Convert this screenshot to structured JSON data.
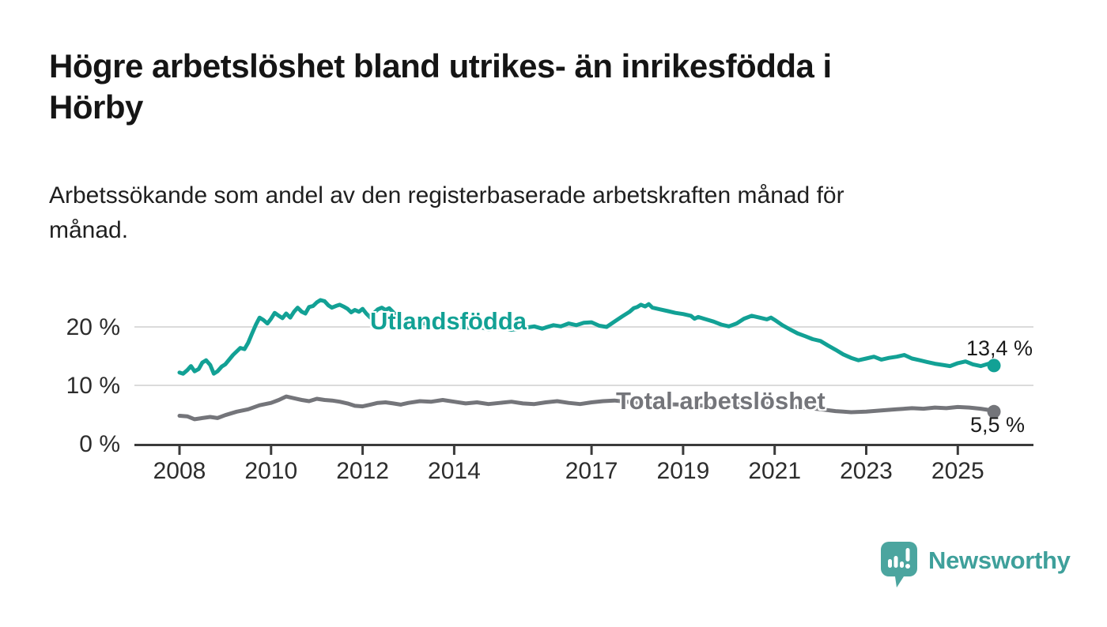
{
  "header": {
    "title": "Högre arbetslöshet bland utrikes- än inrikesfödda i\nHörby",
    "subtitle": "Arbetssökande som andel av den registerbaserade arbetskraften månad för\nmånad."
  },
  "colors": {
    "teal": "#12A195",
    "gray": "#74757A",
    "axis": "#3B3B3B",
    "grid": "#DBDBDB",
    "tick_text": "#2D2D2D",
    "logo_icon": "#4BA59F",
    "logo_text": "#3FA09B"
  },
  "chart_data": {
    "type": "line",
    "title": "Högre arbetslöshet bland utrikes- än inrikesfödda i Hörby",
    "subtitle": "Arbetssökande som andel av den registerbaserade arbetskraften månad för månad.",
    "unit": "%",
    "xlabel": "",
    "ylabel": "",
    "ylim": [
      0,
      26
    ],
    "x_range_years": [
      2008,
      2025.83
    ],
    "grid": "horizontal",
    "legend_position": "inline-labels",
    "y_ticks": [
      {
        "label": "0 %",
        "value": 0
      },
      {
        "label": "10 %",
        "value": 10
      },
      {
        "label": "20 %",
        "value": 20
      }
    ],
    "x_ticks": [
      {
        "label": "2008",
        "year": 2008
      },
      {
        "label": "2010",
        "year": 2010
      },
      {
        "label": "2012",
        "year": 2012
      },
      {
        "label": "2014",
        "year": 2014
      },
      {
        "label": "2017",
        "year": 2017
      },
      {
        "label": "2019",
        "year": 2019
      },
      {
        "label": "2021",
        "year": 2021
      },
      {
        "label": "2023",
        "year": 2023
      },
      {
        "label": "2025",
        "year": 2025
      }
    ],
    "series": [
      {
        "name": "Utlandsfödda",
        "color": "#12A195",
        "end_label": "13,4 %",
        "end_value": 13.4,
        "points": [
          [
            2008.0,
            12.2
          ],
          [
            2008.08,
            12.0
          ],
          [
            2008.17,
            12.6
          ],
          [
            2008.25,
            13.3
          ],
          [
            2008.33,
            12.4
          ],
          [
            2008.42,
            12.8
          ],
          [
            2008.5,
            13.9
          ],
          [
            2008.58,
            14.3
          ],
          [
            2008.67,
            13.5
          ],
          [
            2008.75,
            12.0
          ],
          [
            2008.83,
            12.4
          ],
          [
            2008.92,
            13.2
          ],
          [
            2009.0,
            13.6
          ],
          [
            2009.17,
            15.2
          ],
          [
            2009.33,
            16.4
          ],
          [
            2009.42,
            16.2
          ],
          [
            2009.5,
            17.3
          ],
          [
            2009.58,
            18.8
          ],
          [
            2009.67,
            20.4
          ],
          [
            2009.75,
            21.6
          ],
          [
            2009.83,
            21.2
          ],
          [
            2009.92,
            20.6
          ],
          [
            2010.0,
            21.4
          ],
          [
            2010.08,
            22.4
          ],
          [
            2010.17,
            21.9
          ],
          [
            2010.25,
            21.5
          ],
          [
            2010.33,
            22.3
          ],
          [
            2010.42,
            21.6
          ],
          [
            2010.5,
            22.6
          ],
          [
            2010.58,
            23.3
          ],
          [
            2010.67,
            22.6
          ],
          [
            2010.75,
            22.3
          ],
          [
            2010.83,
            23.4
          ],
          [
            2010.92,
            23.6
          ],
          [
            2011.0,
            24.2
          ],
          [
            2011.08,
            24.6
          ],
          [
            2011.17,
            24.4
          ],
          [
            2011.25,
            23.7
          ],
          [
            2011.33,
            23.3
          ],
          [
            2011.42,
            23.6
          ],
          [
            2011.5,
            23.8
          ],
          [
            2011.58,
            23.5
          ],
          [
            2011.67,
            23.1
          ],
          [
            2011.75,
            22.5
          ],
          [
            2011.83,
            22.9
          ],
          [
            2011.92,
            22.6
          ],
          [
            2012.0,
            23.1
          ],
          [
            2012.08,
            22.3
          ],
          [
            2012.17,
            21.6
          ],
          [
            2012.25,
            22.4
          ],
          [
            2012.33,
            23.0
          ],
          [
            2012.42,
            23.3
          ],
          [
            2012.5,
            22.9
          ],
          [
            2012.58,
            23.2
          ],
          [
            2012.67,
            22.5
          ],
          [
            2012.75,
            21.8
          ],
          [
            2012.83,
            21.4
          ],
          [
            2012.92,
            20.9
          ],
          [
            2013.0,
            20.4
          ],
          [
            2013.25,
            20.8
          ],
          [
            2013.5,
            20.3
          ],
          [
            2013.75,
            19.9
          ],
          [
            2014.0,
            20.2
          ],
          [
            2014.25,
            19.8
          ],
          [
            2014.5,
            20.1
          ],
          [
            2014.75,
            19.6
          ],
          [
            2015.0,
            20.0
          ],
          [
            2015.25,
            19.5
          ],
          [
            2015.5,
            19.8
          ],
          [
            2015.75,
            20.1
          ],
          [
            2015.92,
            19.7
          ],
          [
            2016.0,
            19.9
          ],
          [
            2016.17,
            20.3
          ],
          [
            2016.33,
            20.1
          ],
          [
            2016.5,
            20.6
          ],
          [
            2016.67,
            20.3
          ],
          [
            2016.83,
            20.7
          ],
          [
            2017.0,
            20.8
          ],
          [
            2017.17,
            20.2
          ],
          [
            2017.33,
            20.0
          ],
          [
            2017.5,
            20.9
          ],
          [
            2017.67,
            21.8
          ],
          [
            2017.83,
            22.6
          ],
          [
            2017.92,
            23.2
          ],
          [
            2018.0,
            23.4
          ],
          [
            2018.08,
            23.8
          ],
          [
            2018.17,
            23.5
          ],
          [
            2018.25,
            23.9
          ],
          [
            2018.33,
            23.3
          ],
          [
            2018.5,
            23.0
          ],
          [
            2018.67,
            22.7
          ],
          [
            2018.83,
            22.4
          ],
          [
            2019.0,
            22.2
          ],
          [
            2019.17,
            21.9
          ],
          [
            2019.25,
            21.4
          ],
          [
            2019.33,
            21.7
          ],
          [
            2019.5,
            21.3
          ],
          [
            2019.67,
            20.9
          ],
          [
            2019.83,
            20.4
          ],
          [
            2020.0,
            20.1
          ],
          [
            2020.17,
            20.6
          ],
          [
            2020.33,
            21.4
          ],
          [
            2020.5,
            21.9
          ],
          [
            2020.67,
            21.6
          ],
          [
            2020.83,
            21.3
          ],
          [
            2020.92,
            21.6
          ],
          [
            2021.0,
            21.2
          ],
          [
            2021.17,
            20.3
          ],
          [
            2021.33,
            19.6
          ],
          [
            2021.5,
            18.9
          ],
          [
            2021.67,
            18.4
          ],
          [
            2021.83,
            17.9
          ],
          [
            2022.0,
            17.6
          ],
          [
            2022.17,
            16.8
          ],
          [
            2022.33,
            16.1
          ],
          [
            2022.5,
            15.3
          ],
          [
            2022.67,
            14.7
          ],
          [
            2022.83,
            14.3
          ],
          [
            2023.0,
            14.6
          ],
          [
            2023.17,
            14.9
          ],
          [
            2023.33,
            14.4
          ],
          [
            2023.5,
            14.7
          ],
          [
            2023.67,
            14.9
          ],
          [
            2023.83,
            15.2
          ],
          [
            2024.0,
            14.6
          ],
          [
            2024.17,
            14.3
          ],
          [
            2024.33,
            14.0
          ],
          [
            2024.5,
            13.7
          ],
          [
            2024.67,
            13.5
          ],
          [
            2024.83,
            13.3
          ],
          [
            2025.0,
            13.8
          ],
          [
            2025.17,
            14.1
          ],
          [
            2025.33,
            13.6
          ],
          [
            2025.5,
            13.3
          ],
          [
            2025.67,
            13.7
          ],
          [
            2025.79,
            13.4
          ]
        ]
      },
      {
        "name": "Total arbetslöshet",
        "color": "#74757A",
        "end_label": "5,5 %",
        "end_value": 5.5,
        "points": [
          [
            2008.0,
            4.8
          ],
          [
            2008.17,
            4.7
          ],
          [
            2008.33,
            4.2
          ],
          [
            2008.5,
            4.4
          ],
          [
            2008.67,
            4.6
          ],
          [
            2008.83,
            4.4
          ],
          [
            2009.0,
            4.9
          ],
          [
            2009.25,
            5.5
          ],
          [
            2009.5,
            5.9
          ],
          [
            2009.75,
            6.6
          ],
          [
            2010.0,
            7.0
          ],
          [
            2010.17,
            7.5
          ],
          [
            2010.33,
            8.1
          ],
          [
            2010.5,
            7.8
          ],
          [
            2010.67,
            7.5
          ],
          [
            2010.83,
            7.3
          ],
          [
            2011.0,
            7.7
          ],
          [
            2011.17,
            7.5
          ],
          [
            2011.33,
            7.4
          ],
          [
            2011.5,
            7.2
          ],
          [
            2011.67,
            6.9
          ],
          [
            2011.83,
            6.5
          ],
          [
            2012.0,
            6.4
          ],
          [
            2012.17,
            6.7
          ],
          [
            2012.33,
            7.0
          ],
          [
            2012.5,
            7.1
          ],
          [
            2012.67,
            6.9
          ],
          [
            2012.83,
            6.7
          ],
          [
            2013.0,
            7.0
          ],
          [
            2013.25,
            7.3
          ],
          [
            2013.5,
            7.2
          ],
          [
            2013.75,
            7.5
          ],
          [
            2014.0,
            7.2
          ],
          [
            2014.25,
            6.9
          ],
          [
            2014.5,
            7.1
          ],
          [
            2014.75,
            6.8
          ],
          [
            2015.0,
            7.0
          ],
          [
            2015.25,
            7.2
          ],
          [
            2015.5,
            6.9
          ],
          [
            2015.75,
            6.8
          ],
          [
            2016.0,
            7.1
          ],
          [
            2016.25,
            7.3
          ],
          [
            2016.5,
            7.0
          ],
          [
            2016.75,
            6.8
          ],
          [
            2017.0,
            7.1
          ],
          [
            2017.25,
            7.3
          ],
          [
            2017.5,
            7.4
          ],
          [
            2017.75,
            7.2
          ],
          [
            2018.0,
            7.0
          ],
          [
            2018.5,
            6.8
          ],
          [
            2019.0,
            6.7
          ],
          [
            2019.5,
            6.5
          ],
          [
            2020.0,
            6.6
          ],
          [
            2020.5,
            7.0
          ],
          [
            2021.0,
            6.8
          ],
          [
            2021.5,
            6.3
          ],
          [
            2022.0,
            5.9
          ],
          [
            2022.33,
            5.6
          ],
          [
            2022.5,
            5.5
          ],
          [
            2022.67,
            5.4
          ],
          [
            2023.0,
            5.5
          ],
          [
            2023.33,
            5.7
          ],
          [
            2023.67,
            5.9
          ],
          [
            2024.0,
            6.1
          ],
          [
            2024.25,
            6.0
          ],
          [
            2024.5,
            6.2
          ],
          [
            2024.75,
            6.1
          ],
          [
            2025.0,
            6.3
          ],
          [
            2025.25,
            6.2
          ],
          [
            2025.5,
            6.0
          ],
          [
            2025.67,
            5.8
          ],
          [
            2025.79,
            5.5
          ]
        ]
      }
    ]
  },
  "footer": {
    "brand": "Newsworthy"
  }
}
